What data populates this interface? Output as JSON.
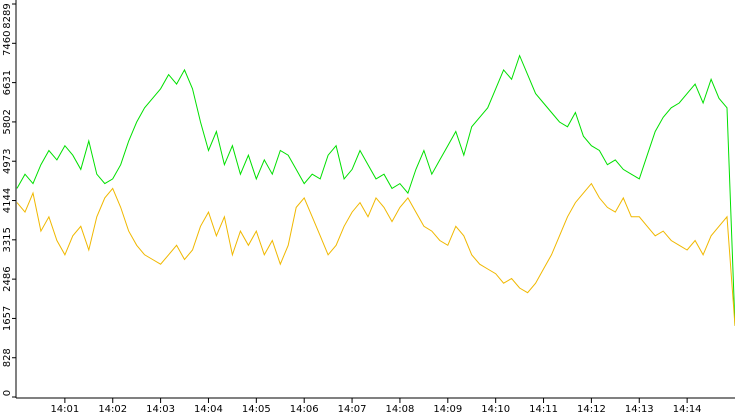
{
  "chart_data": {
    "type": "line",
    "categories": [
      null,
      null,
      null,
      null,
      null,
      null,
      "14:01",
      null,
      null,
      null,
      null,
      null,
      "14:02",
      null,
      null,
      null,
      null,
      null,
      "14:03",
      null,
      null,
      null,
      null,
      null,
      "14:04",
      null,
      null,
      null,
      null,
      null,
      "14:05",
      null,
      null,
      null,
      null,
      null,
      "14:06",
      null,
      null,
      null,
      null,
      null,
      "14:07",
      null,
      null,
      null,
      null,
      null,
      "14:08",
      null,
      null,
      null,
      null,
      null,
      "14:09",
      null,
      null,
      null,
      null,
      null,
      "14:10",
      null,
      null,
      null,
      null,
      null,
      "14:11",
      null,
      null,
      null,
      null,
      null,
      "14:12",
      null,
      null,
      null,
      null,
      null,
      "14:13",
      null,
      null,
      null,
      null,
      null,
      "14:14",
      null,
      null,
      null,
      null,
      null,
      null
    ],
    "series": [
      {
        "color": "#00e000",
        "values": [
          4400,
          4700,
          4500,
          4900,
          5200,
          5000,
          5300,
          5100,
          4800,
          5400,
          4700,
          4500,
          4600,
          4900,
          5400,
          5800,
          6100,
          6300,
          6500,
          6800,
          6600,
          6900,
          6500,
          5800,
          5200,
          5600,
          4900,
          5300,
          4700,
          5100,
          4600,
          5000,
          4700,
          5200,
          5100,
          4800,
          4500,
          4700,
          4600,
          5100,
          5300,
          4600,
          4800,
          5200,
          4900,
          4600,
          4700,
          4400,
          4500,
          4300,
          4800,
          5200,
          4700,
          5000,
          5300,
          5600,
          5100,
          5700,
          5900,
          6100,
          6500,
          6900,
          6700,
          7200,
          6800,
          6400,
          6200,
          6000,
          5800,
          5700,
          6000,
          5500,
          5300,
          5200,
          4900,
          5000,
          4800,
          4700,
          4600,
          5100,
          5600,
          5900,
          6100,
          6200,
          6400,
          6600,
          6200,
          6700,
          6300,
          6100,
          1500
        ]
      },
      {
        "color": "#f0b800",
        "values": [
          4100,
          3900,
          4300,
          3500,
          3800,
          3300,
          3000,
          3400,
          3600,
          3100,
          3800,
          4200,
          4400,
          4000,
          3500,
          3200,
          3000,
          2900,
          2800,
          3000,
          3200,
          2900,
          3100,
          3600,
          3900,
          3400,
          3800,
          3000,
          3500,
          3200,
          3500,
          3000,
          3300,
          2800,
          3200,
          4000,
          4200,
          3800,
          3400,
          3000,
          3200,
          3600,
          3900,
          4100,
          3800,
          4200,
          4000,
          3700,
          4000,
          4200,
          3900,
          3600,
          3500,
          3300,
          3200,
          3600,
          3400,
          3000,
          2800,
          2700,
          2600,
          2400,
          2500,
          2300,
          2200,
          2400,
          2700,
          3000,
          3400,
          3800,
          4100,
          4300,
          4500,
          4200,
          4000,
          3900,
          4200,
          3800,
          3800,
          3600,
          3400,
          3500,
          3300,
          3200,
          3100,
          3300,
          3000,
          3400,
          3600,
          3800,
          1500
        ]
      }
    ],
    "ylim": [
      0,
      8289
    ],
    "yticks": [
      0,
      828,
      1657,
      2486,
      3315,
      4144,
      4973,
      5802,
      6631,
      7460,
      8289
    ]
  }
}
